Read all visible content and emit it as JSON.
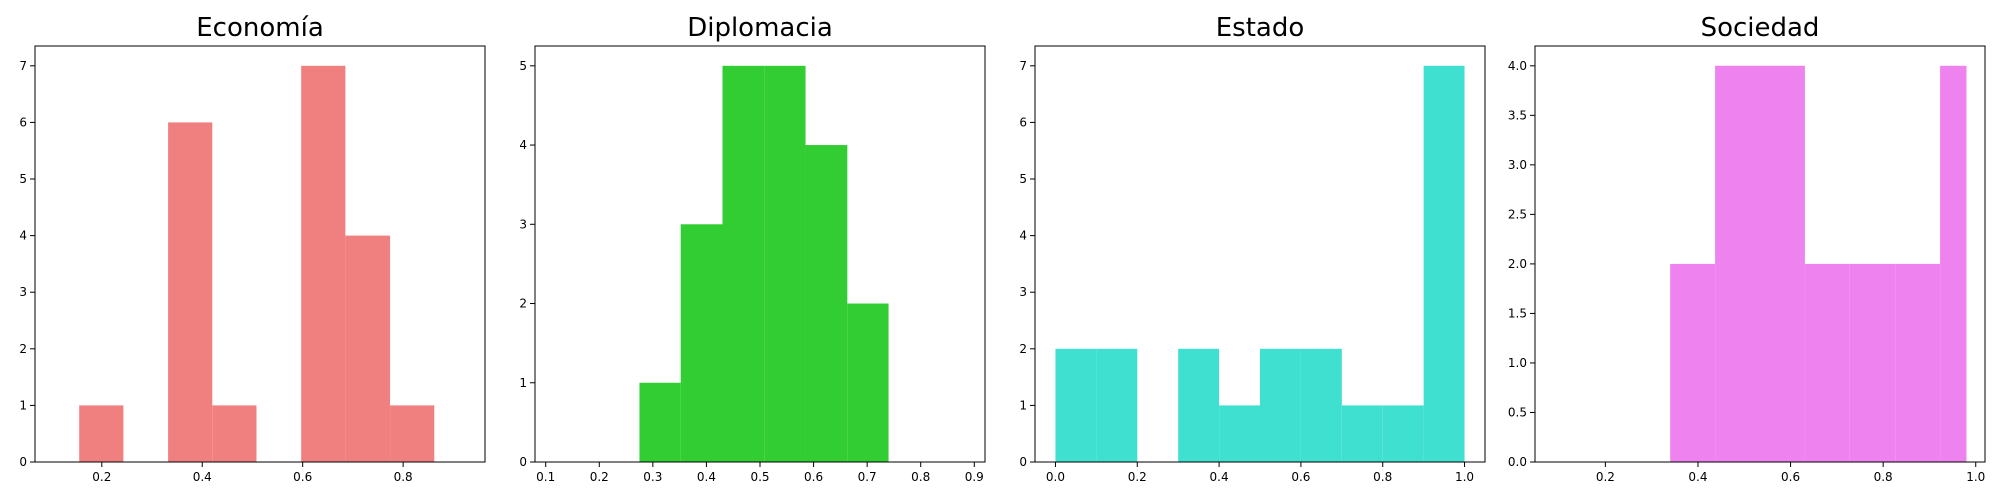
{
  "chart_data": [
    {
      "type": "bar",
      "title": "Economía",
      "color": "#F08080",
      "xlabel": "",
      "ylabel": "",
      "xlim": [
        0.067,
        0.963
      ],
      "ylim": [
        0,
        7.35
      ],
      "xticks": [
        0.2,
        0.4,
        0.6,
        0.8
      ],
      "xtick_labels": [
        "0.2",
        "0.4",
        "0.6",
        "0.8"
      ],
      "yticks": [
        0,
        1,
        2,
        3,
        4,
        5,
        6,
        7
      ],
      "ytick_labels": [
        "0",
        "1",
        "2",
        "3",
        "4",
        "5",
        "6",
        "7"
      ],
      "bins": [
        {
          "x0": 0.155,
          "x1": 0.243,
          "count": 1
        },
        {
          "x0": 0.332,
          "x1": 0.42,
          "count": 6
        },
        {
          "x0": 0.42,
          "x1": 0.508,
          "count": 1
        },
        {
          "x0": 0.597,
          "x1": 0.685,
          "count": 7
        },
        {
          "x0": 0.685,
          "x1": 0.774,
          "count": 4
        },
        {
          "x0": 0.774,
          "x1": 0.862,
          "count": 1
        }
      ]
    },
    {
      "type": "bar",
      "title": "Diplomacia",
      "color": "#32CD32",
      "xlabel": "",
      "ylabel": "",
      "xlim": [
        0.08,
        0.92
      ],
      "ylim": [
        0,
        5.25
      ],
      "xticks": [
        0.1,
        0.2,
        0.3,
        0.4,
        0.5,
        0.6,
        0.7,
        0.8,
        0.9
      ],
      "xtick_labels": [
        "0.1",
        "0.2",
        "0.3",
        "0.4",
        "0.5",
        "0.6",
        "0.7",
        "0.8",
        "0.9"
      ],
      "yticks": [
        0,
        1,
        2,
        3,
        4,
        5
      ],
      "ytick_labels": [
        "0",
        "1",
        "2",
        "3",
        "4",
        "5"
      ],
      "bins": [
        {
          "x0": 0.275,
          "x1": 0.352,
          "count": 1
        },
        {
          "x0": 0.352,
          "x1": 0.43,
          "count": 3
        },
        {
          "x0": 0.43,
          "x1": 0.508,
          "count": 5
        },
        {
          "x0": 0.508,
          "x1": 0.585,
          "count": 5
        },
        {
          "x0": 0.585,
          "x1": 0.663,
          "count": 4
        },
        {
          "x0": 0.663,
          "x1": 0.74,
          "count": 2
        }
      ]
    },
    {
      "type": "bar",
      "title": "Estado",
      "color": "#40E0D0",
      "xlabel": "",
      "ylabel": "",
      "xlim": [
        -0.05,
        1.05
      ],
      "ylim": [
        0,
        7.35
      ],
      "xticks": [
        0.0,
        0.2,
        0.4,
        0.6,
        0.8,
        1.0
      ],
      "xtick_labels": [
        "0.0",
        "0.2",
        "0.4",
        "0.6",
        "0.8",
        "1.0"
      ],
      "yticks": [
        0,
        1,
        2,
        3,
        4,
        5,
        6,
        7
      ],
      "ytick_labels": [
        "0",
        "1",
        "2",
        "3",
        "4",
        "5",
        "6",
        "7"
      ],
      "bins": [
        {
          "x0": 0.0,
          "x1": 0.1,
          "count": 2
        },
        {
          "x0": 0.1,
          "x1": 0.2,
          "count": 2
        },
        {
          "x0": 0.3,
          "x1": 0.4,
          "count": 2
        },
        {
          "x0": 0.4,
          "x1": 0.5,
          "count": 1
        },
        {
          "x0": 0.5,
          "x1": 0.6,
          "count": 2
        },
        {
          "x0": 0.6,
          "x1": 0.7,
          "count": 2
        },
        {
          "x0": 0.7,
          "x1": 0.8,
          "count": 1
        },
        {
          "x0": 0.8,
          "x1": 0.9,
          "count": 1
        },
        {
          "x0": 0.9,
          "x1": 1.0,
          "count": 7
        }
      ]
    },
    {
      "type": "bar",
      "title": "Sociedad",
      "color": "#EE82EE",
      "xlabel": "",
      "ylabel": "",
      "xlim": [
        0.048,
        1.02
      ],
      "ylim": [
        0,
        4.2
      ],
      "xticks": [
        0.2,
        0.4,
        0.6,
        0.8,
        1.0
      ],
      "xtick_labels": [
        "0.2",
        "0.4",
        "0.6",
        "0.8",
        "1.0"
      ],
      "yticks": [
        0,
        0.5,
        1,
        1.5,
        2,
        2.5,
        3,
        3.5,
        4
      ],
      "ytick_labels": [
        "0.0",
        "0.5",
        "1.0",
        "1.5",
        "2.0",
        "2.5",
        "3.0",
        "3.5",
        "4.0"
      ],
      "bins": [
        {
          "x0": 0.34,
          "x1": 0.437,
          "count": 2
        },
        {
          "x0": 0.437,
          "x1": 0.631,
          "count": 4
        },
        {
          "x0": 0.631,
          "x1": 0.728,
          "count": 2
        },
        {
          "x0": 0.728,
          "x1": 0.826,
          "count": 2
        },
        {
          "x0": 0.826,
          "x1": 0.923,
          "count": 2
        },
        {
          "x0": 0.923,
          "x1": 0.98,
          "count": 4
        }
      ]
    }
  ]
}
